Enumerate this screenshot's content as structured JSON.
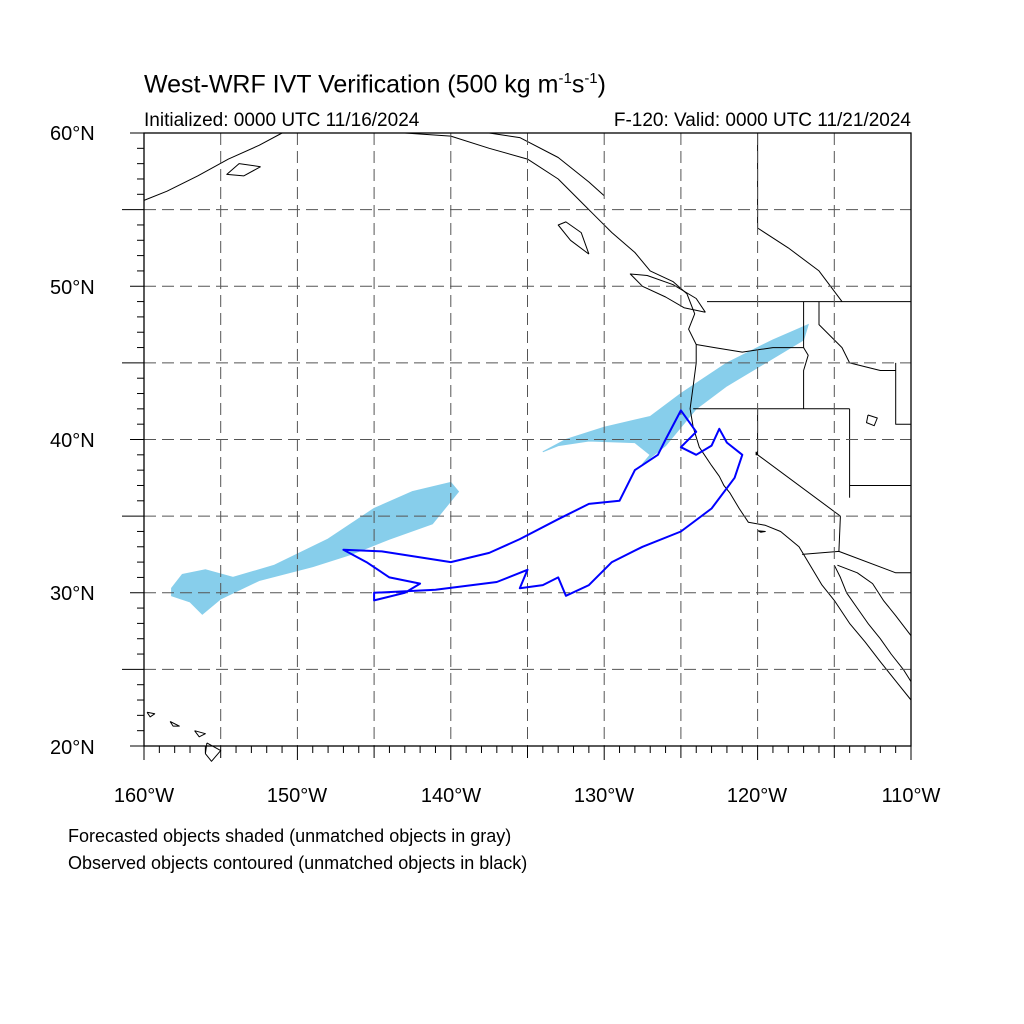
{
  "title": {
    "main": "West-WRF IVT Verification (500 kg m",
    "exp1": "-1",
    "mid": "s",
    "exp2": "-1",
    "close": ")"
  },
  "subtitle_left": "Initialized: 0000 UTC 11/16/2024",
  "subtitle_right": "F-120: Valid: 0000 UTC 11/21/2024",
  "axes": {
    "lat_labels": [
      "60°N",
      "50°N",
      "40°N",
      "30°N",
      "20°N"
    ],
    "lon_labels": [
      "160°W",
      "150°W",
      "140°W",
      "130°W",
      "120°W",
      "110°W"
    ],
    "lon_range": [
      -160,
      -110
    ],
    "lat_range": [
      20,
      60
    ]
  },
  "legend_notes": [
    "Forecasted objects shaded (unmatched objects in gray)",
    "Observed objects contoured (unmatched objects in black)"
  ],
  "colors": {
    "forecast_fill": "#87ceeb",
    "observed_contour": "#0000ff",
    "coast": "#000000",
    "grid": "#555555"
  },
  "map": {
    "forecast_objects": [
      {
        "name": "Forecasted IVT object (matched)",
        "polygon_lonlat": [
          [
            -158.2,
            30.3
          ],
          [
            -157.5,
            31.2
          ],
          [
            -156.0,
            31.5
          ],
          [
            -154.2,
            31.0
          ],
          [
            -151.5,
            31.8
          ],
          [
            -148.0,
            33.5
          ],
          [
            -145.0,
            35.5
          ],
          [
            -142.5,
            36.6
          ],
          [
            -140.0,
            37.2
          ],
          [
            -139.5,
            36.6
          ],
          [
            -141.2,
            34.5
          ],
          [
            -144.0,
            33.5
          ],
          [
            -146.5,
            32.5
          ],
          [
            -149.0,
            31.7
          ],
          [
            -152.5,
            30.8
          ],
          [
            -155.0,
            29.6
          ],
          [
            -156.2,
            28.6
          ],
          [
            -157.0,
            29.4
          ],
          [
            -158.2,
            29.8
          ]
        ]
      },
      {
        "name": "Forecasted IVT object (matched)",
        "polygon_lonlat": [
          [
            -134.0,
            39.2
          ],
          [
            -132.5,
            40.0
          ],
          [
            -130.0,
            40.8
          ],
          [
            -127.0,
            41.5
          ],
          [
            -125.0,
            43.0
          ],
          [
            -122.0,
            45.0
          ],
          [
            -119.0,
            46.5
          ],
          [
            -116.7,
            47.5
          ],
          [
            -117.0,
            46.5
          ],
          [
            -119.5,
            45.0
          ],
          [
            -122.0,
            43.5
          ],
          [
            -124.0,
            42.0
          ],
          [
            -125.0,
            40.8
          ],
          [
            -126.0,
            39.6
          ],
          [
            -127.5,
            38.4
          ],
          [
            -127.0,
            39.0
          ],
          [
            -128.0,
            39.8
          ],
          [
            -131.0,
            39.9
          ],
          [
            -133.0,
            39.6
          ]
        ]
      }
    ],
    "observed_objects": [
      {
        "name": "Observed IVT object (matched)",
        "polygon_lonlat": [
          [
            -147.0,
            32.8
          ],
          [
            -145.5,
            32.0
          ],
          [
            -144.0,
            31.0
          ],
          [
            -142.0,
            30.6
          ],
          [
            -143.0,
            30.0
          ],
          [
            -145.0,
            29.5
          ],
          [
            -145.0,
            30.0
          ],
          [
            -141.0,
            30.2
          ],
          [
            -137.0,
            30.7
          ],
          [
            -135.0,
            31.5
          ],
          [
            -135.5,
            30.3
          ],
          [
            -134.0,
            30.5
          ],
          [
            -133.0,
            31.0
          ],
          [
            -132.5,
            29.8
          ],
          [
            -131.0,
            30.5
          ],
          [
            -129.5,
            32.0
          ],
          [
            -127.5,
            33.0
          ],
          [
            -125.0,
            34.0
          ],
          [
            -123.0,
            35.5
          ],
          [
            -121.5,
            37.5
          ],
          [
            -121.0,
            39.0
          ],
          [
            -122.0,
            39.8
          ],
          [
            -122.5,
            40.7
          ],
          [
            -123.0,
            39.6
          ],
          [
            -124.0,
            39.0
          ],
          [
            -125.0,
            39.5
          ],
          [
            -124.0,
            40.5
          ],
          [
            -125.0,
            41.9
          ],
          [
            -126.0,
            40.0
          ],
          [
            -126.5,
            39.0
          ],
          [
            -128.0,
            38.0
          ],
          [
            -129.0,
            36.0
          ],
          [
            -131.0,
            35.8
          ],
          [
            -133.0,
            34.8
          ],
          [
            -135.5,
            33.5
          ],
          [
            -137.5,
            32.6
          ],
          [
            -140.0,
            32.0
          ],
          [
            -144.5,
            32.7
          ]
        ]
      }
    ]
  }
}
